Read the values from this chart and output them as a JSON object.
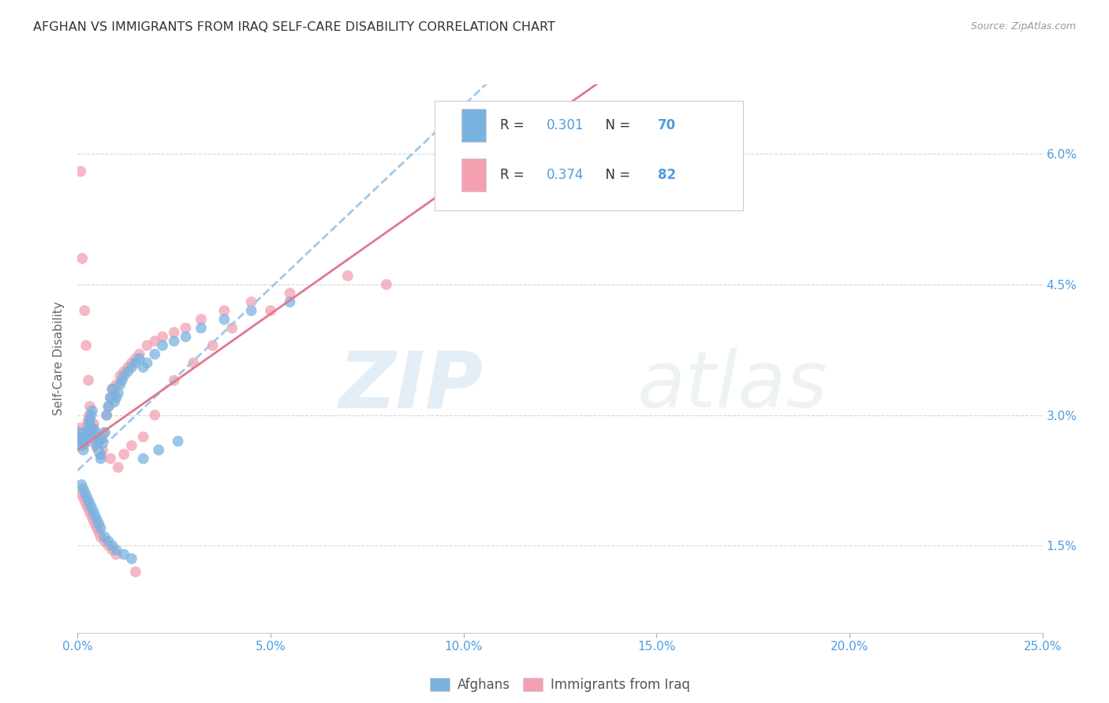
{
  "title": "AFGHAN VS IMMIGRANTS FROM IRAQ SELF-CARE DISABILITY CORRELATION CHART",
  "source": "Source: ZipAtlas.com",
  "ylabel": "Self-Care Disability",
  "ytick_values": [
    1.5,
    3.0,
    4.5,
    6.0
  ],
  "xmin": 0.0,
  "xmax": 25.0,
  "ymin": 0.5,
  "ymax": 6.8,
  "legend_afghan": "Afghans",
  "legend_iraq": "Immigrants from Iraq",
  "R_afghan": "0.301",
  "N_afghan": "70",
  "R_iraq": "0.374",
  "N_iraq": "82",
  "color_afghan": "#7ab3e0",
  "color_iraq": "#f4a0b0",
  "trend_afghan_color": "#a0c8e8",
  "trend_iraq_color": "#e07890",
  "background_color": "#ffffff",
  "afghans_x": [
    0.05,
    0.08,
    0.1,
    0.12,
    0.15,
    0.18,
    0.2,
    0.22,
    0.25,
    0.28,
    0.3,
    0.32,
    0.35,
    0.38,
    0.4,
    0.42,
    0.45,
    0.48,
    0.5,
    0.52,
    0.55,
    0.58,
    0.6,
    0.62,
    0.65,
    0.7,
    0.75,
    0.8,
    0.85,
    0.9,
    0.95,
    1.0,
    1.05,
    1.1,
    1.15,
    1.2,
    1.3,
    1.4,
    1.5,
    1.6,
    1.7,
    1.8,
    2.0,
    2.2,
    2.5,
    2.8,
    3.2,
    3.8,
    4.5,
    5.5,
    0.1,
    0.15,
    0.2,
    0.25,
    0.3,
    0.35,
    0.4,
    0.45,
    0.5,
    0.55,
    0.6,
    0.7,
    0.8,
    0.9,
    1.0,
    1.2,
    1.4,
    1.7,
    2.1,
    2.6
  ],
  "afghans_y": [
    2.8,
    2.75,
    2.7,
    2.65,
    2.6,
    2.72,
    2.68,
    2.75,
    2.8,
    2.85,
    2.9,
    2.95,
    3.0,
    3.05,
    2.85,
    2.78,
    2.82,
    2.75,
    2.7,
    2.65,
    2.6,
    2.55,
    2.5,
    2.72,
    2.68,
    2.8,
    3.0,
    3.1,
    3.2,
    3.3,
    3.15,
    3.2,
    3.25,
    3.35,
    3.4,
    3.45,
    3.5,
    3.55,
    3.6,
    3.65,
    3.55,
    3.6,
    3.7,
    3.8,
    3.85,
    3.9,
    4.0,
    4.1,
    4.2,
    4.3,
    2.2,
    2.15,
    2.1,
    2.05,
    2.0,
    1.95,
    1.9,
    1.85,
    1.8,
    1.75,
    1.7,
    1.6,
    1.55,
    1.5,
    1.45,
    1.4,
    1.35,
    2.5,
    2.6,
    2.7
  ],
  "iraq_x": [
    0.05,
    0.08,
    0.1,
    0.12,
    0.15,
    0.18,
    0.2,
    0.22,
    0.25,
    0.28,
    0.3,
    0.32,
    0.35,
    0.38,
    0.4,
    0.42,
    0.45,
    0.48,
    0.5,
    0.55,
    0.6,
    0.65,
    0.7,
    0.75,
    0.8,
    0.85,
    0.9,
    0.95,
    1.0,
    1.1,
    1.2,
    1.3,
    1.4,
    1.5,
    1.6,
    1.8,
    2.0,
    2.2,
    2.5,
    2.8,
    3.2,
    3.8,
    4.5,
    5.5,
    8.0,
    0.1,
    0.15,
    0.2,
    0.25,
    0.3,
    0.35,
    0.4,
    0.45,
    0.5,
    0.55,
    0.6,
    0.7,
    0.8,
    0.9,
    1.0,
    1.2,
    1.4,
    1.7,
    2.0,
    2.5,
    3.0,
    3.5,
    4.0,
    5.0,
    7.0,
    0.08,
    0.12,
    0.18,
    0.22,
    0.28,
    0.32,
    0.42,
    0.52,
    0.65,
    0.85,
    1.05,
    1.5
  ],
  "iraq_y": [
    2.85,
    2.8,
    2.75,
    2.7,
    2.65,
    2.75,
    2.72,
    2.8,
    2.9,
    2.95,
    3.0,
    2.85,
    2.78,
    2.82,
    2.75,
    2.72,
    2.68,
    2.65,
    2.62,
    2.58,
    2.55,
    2.7,
    2.8,
    3.0,
    3.1,
    3.2,
    3.3,
    3.25,
    3.35,
    3.45,
    3.5,
    3.55,
    3.6,
    3.65,
    3.7,
    3.8,
    3.85,
    3.9,
    3.95,
    4.0,
    4.1,
    4.2,
    4.3,
    4.4,
    4.5,
    2.1,
    2.05,
    2.0,
    1.95,
    1.9,
    1.85,
    1.8,
    1.75,
    1.7,
    1.65,
    1.6,
    1.55,
    1.5,
    1.45,
    1.4,
    2.55,
    2.65,
    2.75,
    3.0,
    3.4,
    3.6,
    3.8,
    4.0,
    4.2,
    4.6,
    5.8,
    4.8,
    4.2,
    3.8,
    3.4,
    3.1,
    2.9,
    2.7,
    2.6,
    2.5,
    2.4,
    1.2
  ]
}
